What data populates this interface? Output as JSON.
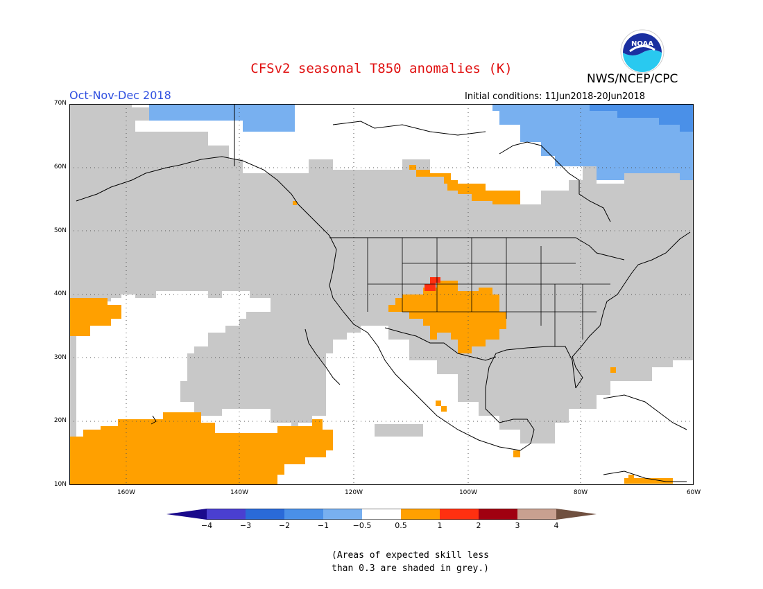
{
  "title": "CFSv2 seasonal T850 anomalies (K)",
  "agency": "NWS/NCEP/CPC",
  "logo_text": "NOAA",
  "season": "Oct-Nov-Dec 2018",
  "initial_conditions": "Initial conditions: 11Jun2018-20Jun2018",
  "lat_labels": [
    "70N",
    "60N",
    "50N",
    "40N",
    "30N",
    "20N",
    "10N"
  ],
  "lon_labels": [
    "160W",
    "140W",
    "120W",
    "100W",
    "80W",
    "60W"
  ],
  "colorbar": {
    "labels": [
      "−4",
      "−3",
      "−2",
      "−1",
      "−0.5",
      "0.5",
      "1",
      "2",
      "3",
      "4"
    ],
    "colors": [
      "#1a0a8c",
      "#4a3fd0",
      "#2a6ad8",
      "#4a90e8",
      "#78b0f0",
      "#ffffff",
      "#ffa000",
      "#ff3010",
      "#a00010",
      "#c8a090",
      "#705040"
    ]
  },
  "note_line1": "(Areas of expected skill less",
  "note_line2": "than 0.3 are shaded in grey.)"
}
